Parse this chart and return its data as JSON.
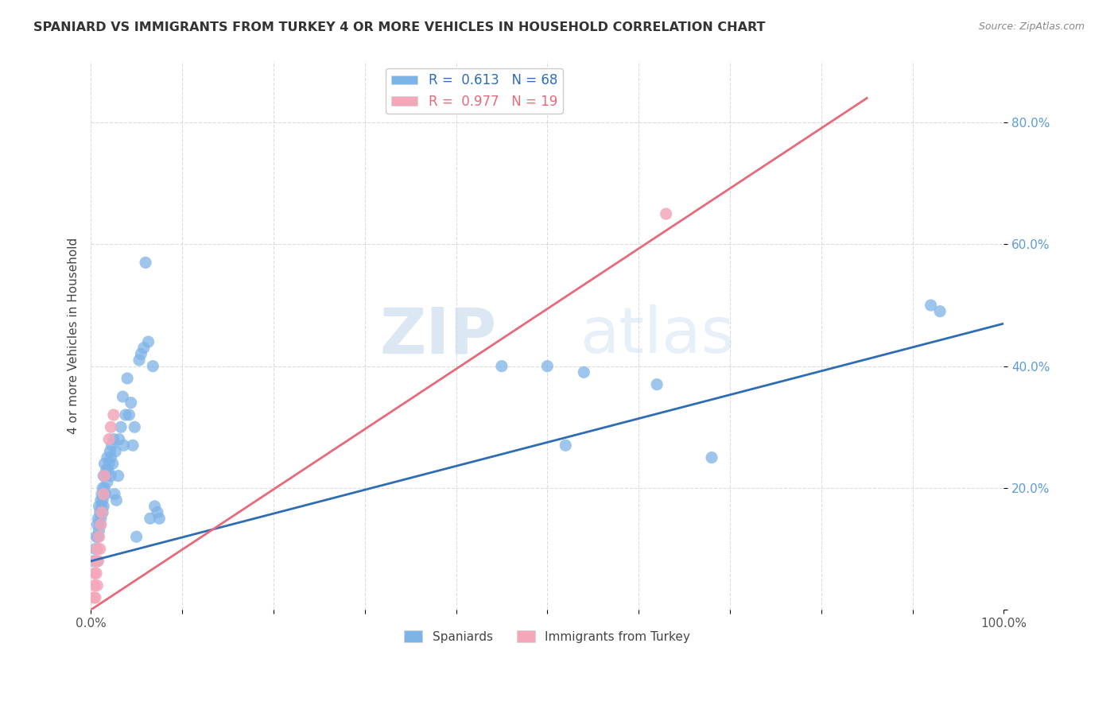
{
  "title": "SPANIARD VS IMMIGRANTS FROM TURKEY 4 OR MORE VEHICLES IN HOUSEHOLD CORRELATION CHART",
  "source": "Source: ZipAtlas.com",
  "ylabel": "4 or more Vehicles in Household",
  "xlim": [
    0,
    1.0
  ],
  "ylim": [
    0,
    0.9
  ],
  "blue_R": 0.613,
  "blue_N": 68,
  "pink_R": 0.977,
  "pink_N": 19,
  "blue_color": "#7EB3E8",
  "pink_color": "#F4A7B9",
  "blue_line_color": "#2E6DB4",
  "pink_line_color": "#E8697A",
  "legend_label_blue": "Spaniards",
  "legend_label_pink": "Immigrants from Turkey",
  "watermark_zip": "ZIP",
  "watermark_atlas": "atlas",
  "blue_scatter_x": [
    0.003,
    0.005,
    0.006,
    0.007,
    0.007,
    0.008,
    0.008,
    0.009,
    0.009,
    0.01,
    0.01,
    0.011,
    0.011,
    0.012,
    0.012,
    0.013,
    0.013,
    0.013,
    0.014,
    0.014,
    0.015,
    0.015,
    0.016,
    0.016,
    0.017,
    0.018,
    0.018,
    0.019,
    0.02,
    0.021,
    0.022,
    0.022,
    0.023,
    0.024,
    0.025,
    0.026,
    0.027,
    0.028,
    0.03,
    0.031,
    0.033,
    0.035,
    0.036,
    0.038,
    0.04,
    0.042,
    0.044,
    0.046,
    0.048,
    0.05,
    0.053,
    0.055,
    0.058,
    0.06,
    0.063,
    0.065,
    0.068,
    0.07,
    0.073,
    0.075,
    0.45,
    0.5,
    0.52,
    0.54,
    0.62,
    0.68,
    0.92,
    0.93
  ],
  "blue_scatter_y": [
    0.08,
    0.1,
    0.12,
    0.08,
    0.14,
    0.12,
    0.15,
    0.17,
    0.13,
    0.16,
    0.14,
    0.18,
    0.15,
    0.17,
    0.19,
    0.16,
    0.18,
    0.2,
    0.17,
    0.22,
    0.2,
    0.24,
    0.22,
    0.19,
    0.23,
    0.25,
    0.21,
    0.23,
    0.24,
    0.26,
    0.25,
    0.22,
    0.27,
    0.24,
    0.28,
    0.19,
    0.26,
    0.18,
    0.22,
    0.28,
    0.3,
    0.35,
    0.27,
    0.32,
    0.38,
    0.32,
    0.34,
    0.27,
    0.3,
    0.12,
    0.41,
    0.42,
    0.43,
    0.57,
    0.44,
    0.15,
    0.4,
    0.17,
    0.16,
    0.15,
    0.4,
    0.4,
    0.27,
    0.39,
    0.37,
    0.25,
    0.5,
    0.49
  ],
  "pink_scatter_x": [
    0.003,
    0.004,
    0.004,
    0.005,
    0.005,
    0.006,
    0.007,
    0.007,
    0.008,
    0.009,
    0.01,
    0.011,
    0.012,
    0.014,
    0.015,
    0.02,
    0.022,
    0.025,
    0.63
  ],
  "pink_scatter_y": [
    0.02,
    0.04,
    0.06,
    0.02,
    0.08,
    0.06,
    0.1,
    0.04,
    0.08,
    0.12,
    0.1,
    0.14,
    0.16,
    0.19,
    0.22,
    0.28,
    0.3,
    0.32,
    0.65
  ],
  "blue_line_x": [
    0.0,
    1.0
  ],
  "blue_line_y": [
    0.08,
    0.47
  ],
  "pink_line_x": [
    0.0,
    0.85
  ],
  "pink_line_y": [
    0.0,
    0.84
  ]
}
